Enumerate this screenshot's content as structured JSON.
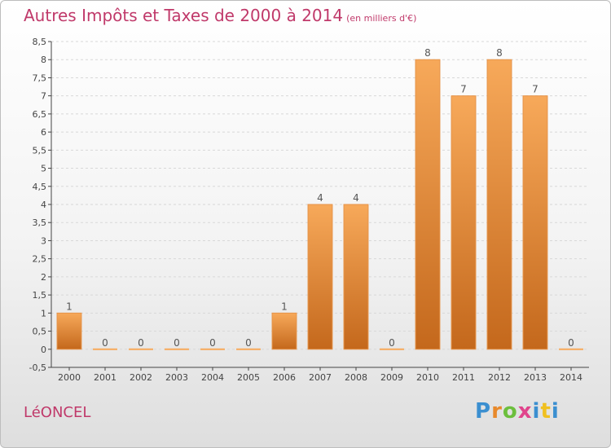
{
  "header": {
    "title": "Autres Impôts et Taxes de 2000 à 2014",
    "subtitle": "(en milliers d'€)"
  },
  "footer": {
    "commune": "LéONCEL",
    "brand": "Proxiti",
    "brand_colors": [
      "#3b8fd0",
      "#e8892b",
      "#6cbf3d",
      "#e0448c",
      "#3b8fd0",
      "#f0c020",
      "#3b8fd0"
    ]
  },
  "colors": {
    "bar_top": "#f7a95a",
    "bar_bottom": "#c4681c",
    "title": "#c0396a",
    "axis": "#444444",
    "grid": "#d8d8d8"
  },
  "chart_data": {
    "type": "bar",
    "title": "Autres Impôts et Taxes de 2000 à 2014",
    "subtitle": "(en milliers d'€)",
    "categories": [
      "2000",
      "2001",
      "2002",
      "2003",
      "2004",
      "2005",
      "2006",
      "2007",
      "2008",
      "2009",
      "2010",
      "2011",
      "2012",
      "2013",
      "2014"
    ],
    "values": [
      1,
      0,
      0,
      0,
      0,
      0,
      1,
      4,
      4,
      0,
      8,
      7,
      8,
      7,
      0
    ],
    "data_labels": [
      "1",
      "0",
      "0",
      "0",
      "0",
      "0",
      "1",
      "4",
      "4",
      "0",
      "8",
      "7",
      "8",
      "7",
      "0"
    ],
    "ylim": [
      -0.5,
      8.5
    ],
    "yticks": [
      "-0,5",
      "0",
      "0,5",
      "1",
      "1,5",
      "2",
      "2,5",
      "3",
      "3,5",
      "4",
      "4,5",
      "5",
      "5,5",
      "6",
      "6,5",
      "7",
      "7,5",
      "8",
      "8,5"
    ],
    "grid": "horizontal dashed"
  }
}
